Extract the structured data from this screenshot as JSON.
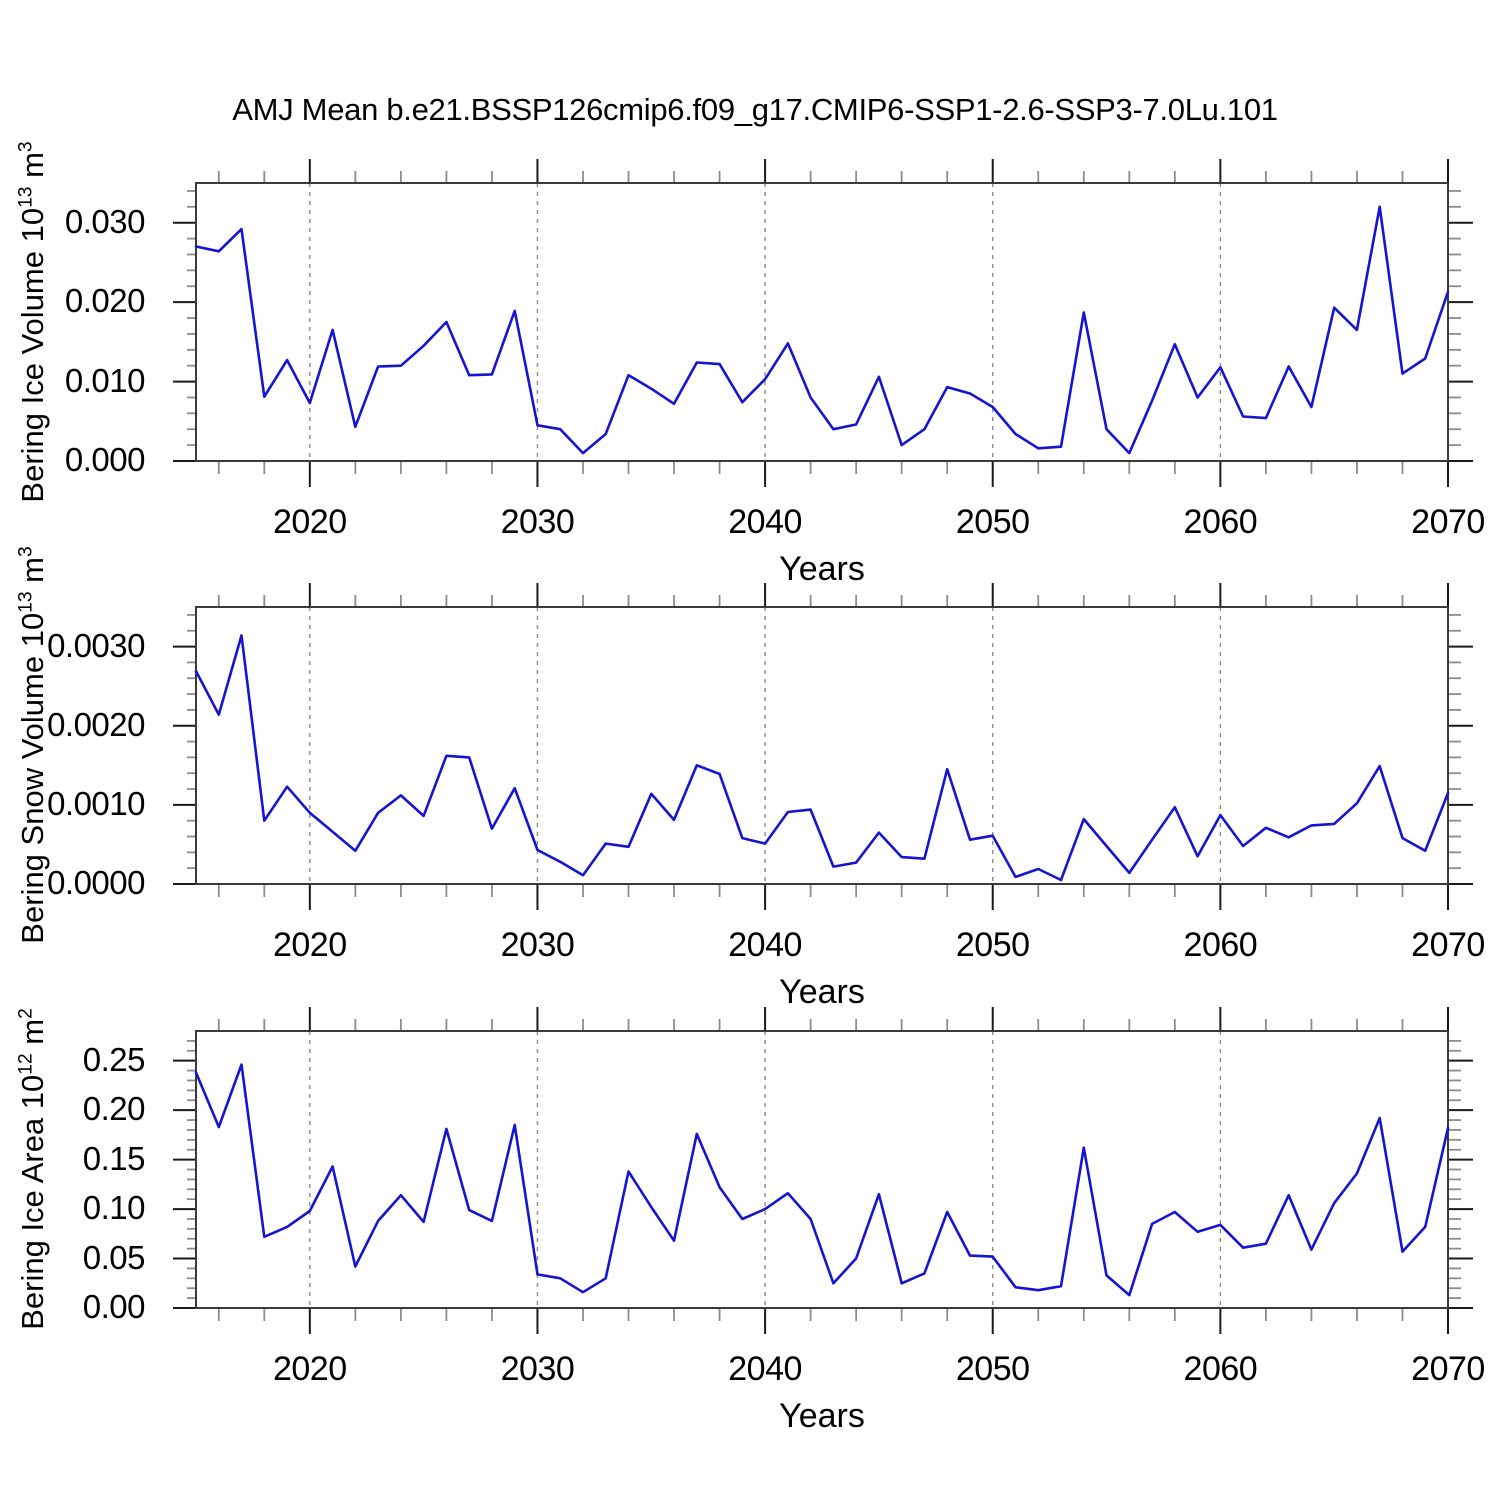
{
  "title": "AMJ Mean b.e21.BSSP126cmip6.f09_g17.CMIP6-SSP1-2.6-SSP3-7.0Lu.101",
  "line_color": "#1414d2",
  "chart_data": [
    {
      "type": "line",
      "name": "bering-ice-volume",
      "ylabel": {
        "text": "Bering Ice Volume 10",
        "exp": "13",
        "unit": " m",
        "unit_exp": "3"
      },
      "xlabel": "Years",
      "xlim": [
        2015,
        2070
      ],
      "ylim": [
        0,
        0.035
      ],
      "x": [
        2015,
        2016,
        2017,
        2018,
        2019,
        2020,
        2021,
        2022,
        2023,
        2024,
        2025,
        2026,
        2027,
        2028,
        2029,
        2030,
        2031,
        2032,
        2033,
        2034,
        2035,
        2036,
        2037,
        2038,
        2039,
        2040,
        2041,
        2042,
        2043,
        2044,
        2045,
        2046,
        2047,
        2048,
        2049,
        2050,
        2051,
        2052,
        2053,
        2054,
        2055,
        2056,
        2057,
        2058,
        2059,
        2060,
        2061,
        2062,
        2063,
        2064,
        2065,
        2066,
        2067,
        2068,
        2069,
        2070
      ],
      "values": [
        0.027,
        0.0264,
        0.0292,
        0.0081,
        0.0127,
        0.0073,
        0.0165,
        0.0043,
        0.0119,
        0.012,
        0.0145,
        0.0175,
        0.0108,
        0.0109,
        0.0189,
        0.0045,
        0.004,
        0.001,
        0.0034,
        0.0108,
        0.0091,
        0.0072,
        0.0124,
        0.0122,
        0.0074,
        0.0103,
        0.0148,
        0.008,
        0.004,
        0.0046,
        0.0106,
        0.002,
        0.004,
        0.0093,
        0.0085,
        0.0068,
        0.0034,
        0.0016,
        0.0018,
        0.0187,
        0.004,
        0.001,
        0.0076,
        0.0147,
        0.008,
        0.0118,
        0.0056,
        0.0054,
        0.0119,
        0.0068,
        0.0193,
        0.0165,
        0.032,
        0.011,
        0.0129,
        0.0213
      ],
      "ytick_values": [
        0.0,
        0.01,
        0.02,
        0.03
      ],
      "ytick_labels": [
        "0.000",
        "0.010",
        "0.020",
        "0.030"
      ],
      "y_minor_step": 0.002,
      "xtick_values": [
        2020,
        2030,
        2040,
        2050,
        2060,
        2070
      ],
      "xtick_labels": [
        "2020",
        "2030",
        "2040",
        "2050",
        "2060",
        "2070"
      ],
      "x_minor_step": 2,
      "grid_x": [
        2020,
        2030,
        2040,
        2050,
        2060
      ],
      "grid_on": true,
      "legend": "none"
    },
    {
      "type": "line",
      "name": "bering-snow-volume",
      "ylabel": {
        "text": "Bering Snow Volume 10",
        "exp": "13",
        "unit": " m",
        "unit_exp": "3"
      },
      "xlabel": "Years",
      "xlim": [
        2015,
        2070
      ],
      "ylim": [
        0,
        0.0035
      ],
      "x": [
        2015,
        2016,
        2017,
        2018,
        2019,
        2020,
        2021,
        2022,
        2023,
        2024,
        2025,
        2026,
        2027,
        2028,
        2029,
        2030,
        2031,
        2032,
        2033,
        2034,
        2035,
        2036,
        2037,
        2038,
        2039,
        2040,
        2041,
        2042,
        2043,
        2044,
        2045,
        2046,
        2047,
        2048,
        2049,
        2050,
        2051,
        2052,
        2053,
        2054,
        2055,
        2056,
        2057,
        2058,
        2059,
        2060,
        2061,
        2062,
        2063,
        2064,
        2065,
        2066,
        2067,
        2068,
        2069,
        2070
      ],
      "values": [
        0.00269,
        0.00214,
        0.00314,
        0.0008,
        0.00123,
        0.0009,
        0.00066,
        0.00042,
        0.0009,
        0.00112,
        0.00086,
        0.00162,
        0.0016,
        0.0007,
        0.00121,
        0.00043,
        0.00028,
        0.00011,
        0.00051,
        0.00047,
        0.00114,
        0.00081,
        0.0015,
        0.00139,
        0.00058,
        0.00051,
        0.00091,
        0.00094,
        0.00022,
        0.00027,
        0.00065,
        0.00034,
        0.00032,
        0.00145,
        0.00056,
        0.00061,
        9e-05,
        0.00019,
        5e-05,
        0.00082,
        0.00048,
        0.00014,
        0.00056,
        0.00097,
        0.00035,
        0.00087,
        0.00048,
        0.00071,
        0.00059,
        0.00074,
        0.00076,
        0.00102,
        0.00149,
        0.00058,
        0.00042,
        0.00115
      ],
      "ytick_values": [
        0.0,
        0.001,
        0.002,
        0.003
      ],
      "ytick_labels": [
        "0.0000",
        "0.0010",
        "0.0020",
        "0.0030"
      ],
      "y_minor_step": 0.0002,
      "xtick_values": [
        2020,
        2030,
        2040,
        2050,
        2060,
        2070
      ],
      "xtick_labels": [
        "2020",
        "2030",
        "2040",
        "2050",
        "2060",
        "2070"
      ],
      "x_minor_step": 2,
      "grid_x": [
        2020,
        2030,
        2040,
        2050,
        2060
      ],
      "grid_on": true,
      "legend": "none"
    },
    {
      "type": "line",
      "name": "bering-ice-area",
      "ylabel": {
        "text": "Bering Ice Area 10",
        "exp": "12",
        "unit": " m",
        "unit_exp": "2"
      },
      "xlabel": "Years",
      "xlim": [
        2015,
        2070
      ],
      "ylim": [
        0,
        0.28
      ],
      "x": [
        2015,
        2016,
        2017,
        2018,
        2019,
        2020,
        2021,
        2022,
        2023,
        2024,
        2025,
        2026,
        2027,
        2028,
        2029,
        2030,
        2031,
        2032,
        2033,
        2034,
        2035,
        2036,
        2037,
        2038,
        2039,
        2040,
        2041,
        2042,
        2043,
        2044,
        2045,
        2046,
        2047,
        2048,
        2049,
        2050,
        2051,
        2052,
        2053,
        2054,
        2055,
        2056,
        2057,
        2058,
        2059,
        2060,
        2061,
        2062,
        2063,
        2064,
        2065,
        2066,
        2067,
        2068,
        2069,
        2070
      ],
      "values": [
        0.238,
        0.183,
        0.246,
        0.072,
        0.082,
        0.098,
        0.143,
        0.042,
        0.088,
        0.114,
        0.087,
        0.181,
        0.099,
        0.088,
        0.185,
        0.034,
        0.03,
        0.016,
        0.03,
        0.138,
        0.102,
        0.068,
        0.176,
        0.122,
        0.09,
        0.1,
        0.116,
        0.09,
        0.025,
        0.05,
        0.115,
        0.025,
        0.035,
        0.097,
        0.053,
        0.052,
        0.021,
        0.018,
        0.022,
        0.162,
        0.033,
        0.013,
        0.085,
        0.097,
        0.077,
        0.084,
        0.061,
        0.065,
        0.114,
        0.059,
        0.106,
        0.136,
        0.192,
        0.057,
        0.082,
        0.182
      ],
      "ytick_values": [
        0.0,
        0.05,
        0.1,
        0.15,
        0.2,
        0.25
      ],
      "ytick_labels": [
        "0.00",
        "0.05",
        "0.10",
        "0.15",
        "0.20",
        "0.25"
      ],
      "y_minor_step": 0.01,
      "xtick_values": [
        2020,
        2030,
        2040,
        2050,
        2060,
        2070
      ],
      "xtick_labels": [
        "2020",
        "2030",
        "2040",
        "2050",
        "2060",
        "2070"
      ],
      "x_minor_step": 2,
      "grid_x": [
        2020,
        2030,
        2040,
        2050,
        2060
      ],
      "grid_on": true,
      "legend": "none"
    }
  ]
}
